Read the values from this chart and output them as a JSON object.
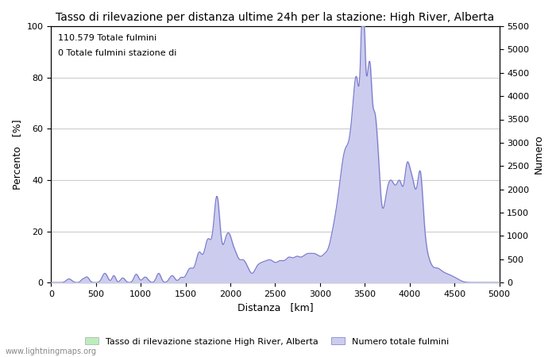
{
  "title": "Tasso di rilevazione per distanza ultime 24h per la stazione: High River, Alberta",
  "xlabel": "Distanza   [km]",
  "ylabel_left": "Percento   [%]",
  "ylabel_right": "Numero",
  "annotation_line1": "110.579 Totale fulmini",
  "annotation_line2": "0 Totale fulmini stazione di",
  "xlim": [
    0,
    5000
  ],
  "ylim_left": [
    0,
    100
  ],
  "ylim_right": [
    0,
    5500
  ],
  "xticks": [
    0,
    500,
    1000,
    1500,
    2000,
    2500,
    3000,
    3500,
    4000,
    4500,
    5000
  ],
  "yticks_left": [
    0,
    20,
    40,
    60,
    80,
    100
  ],
  "yticks_right": [
    0,
    500,
    1000,
    1500,
    2000,
    2500,
    3000,
    3500,
    4000,
    4500,
    5000,
    5500
  ],
  "legend_label_green": "Tasso di rilevazione stazione High River, Alberta",
  "legend_label_blue": "Numero totale fulmini",
  "watermark": "www.lightningmaps.org",
  "bg_color": "#ffffff",
  "plot_bg_color": "#ffffff",
  "grid_color": "#cccccc",
  "line_color": "#7777cc",
  "fill_blue_color": "#ccccee",
  "fill_green_color": "#bbeebb",
  "title_fontsize": 10,
  "label_fontsize": 9,
  "tick_fontsize": 8
}
